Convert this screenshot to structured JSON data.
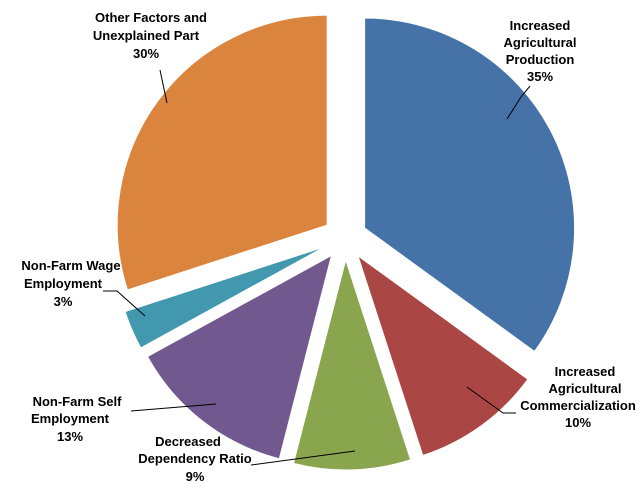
{
  "chart_data": {
    "type": "pie",
    "title": "",
    "exploded": true,
    "slices": [
      {
        "name": "Increased Agricultural Production",
        "label_lines": [
          "Increased",
          "Agricultural",
          "Production"
        ],
        "pct_label": "35%",
        "value": 35,
        "color": "#4572A7"
      },
      {
        "name": "Increased Agricultural Commercialization",
        "label_lines": [
          "Increased",
          "Agricultural",
          "Commercialization"
        ],
        "pct_label": "10%",
        "value": 10,
        "color": "#AA4643"
      },
      {
        "name": "Decreased Dependency Ratio",
        "label_lines": [
          "Decreased",
          "Dependency Ratio"
        ],
        "pct_label": "9%",
        "value": 9,
        "color": "#89A54E"
      },
      {
        "name": "Non-Farm Self Employment",
        "label_lines": [
          "Non-Farm Self",
          "Employment"
        ],
        "pct_label": "13%",
        "value": 13,
        "color": "#71588F"
      },
      {
        "name": "Non-Farm Wage Employment",
        "label_lines": [
          "Non-Farm Wage",
          "Employment"
        ],
        "pct_label": "3%",
        "value": 3,
        "color": "#4198AF"
      },
      {
        "name": "Other Factors and Unexplained Part",
        "label_lines": [
          "Other Factors and",
          "Unexplained Part"
        ],
        "pct_label": "30%",
        "value": 30,
        "color": "#DB843D"
      }
    ]
  }
}
